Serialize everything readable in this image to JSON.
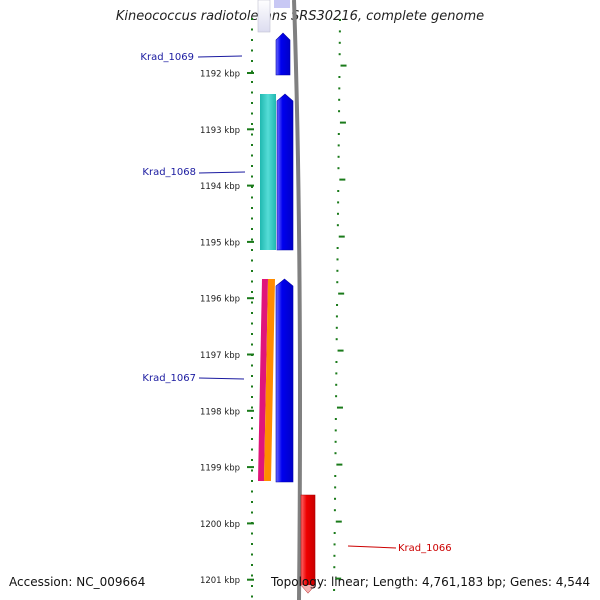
{
  "title": "Kineococcus radiotolerans SRS30216, complete genome",
  "footer": {
    "accession": "Accession: NC_009664",
    "topology": "Topology: linear; Length: 4,761,183 bp; Genes: 4,544"
  },
  "ruler": {
    "labels": [
      "1192 kbp",
      "1193 kbp",
      "1194 kbp",
      "1195 kbp",
      "1196 kbp",
      "1197 kbp",
      "1198 kbp",
      "1199 kbp",
      "1200 kbp",
      "1201 kbp"
    ]
  },
  "genes": [
    {
      "name": "Krad_1069",
      "color": "#1a1aa0"
    },
    {
      "name": "Krad_1068",
      "color": "#1a1aa0"
    },
    {
      "name": "Krad_1067",
      "color": "#1a1aa0"
    },
    {
      "name": "Krad_1066",
      "color": "#cc0000"
    }
  ],
  "colors": {
    "tick": "#1a7a1a",
    "backbone": "#808080",
    "gene_forward": "#0000ee",
    "gene_reverse": "#ee0000",
    "homolog_cyan": "#33c8c0",
    "homolog_magenta": "#e0157a",
    "homolog_orange": "#ff8c00"
  }
}
